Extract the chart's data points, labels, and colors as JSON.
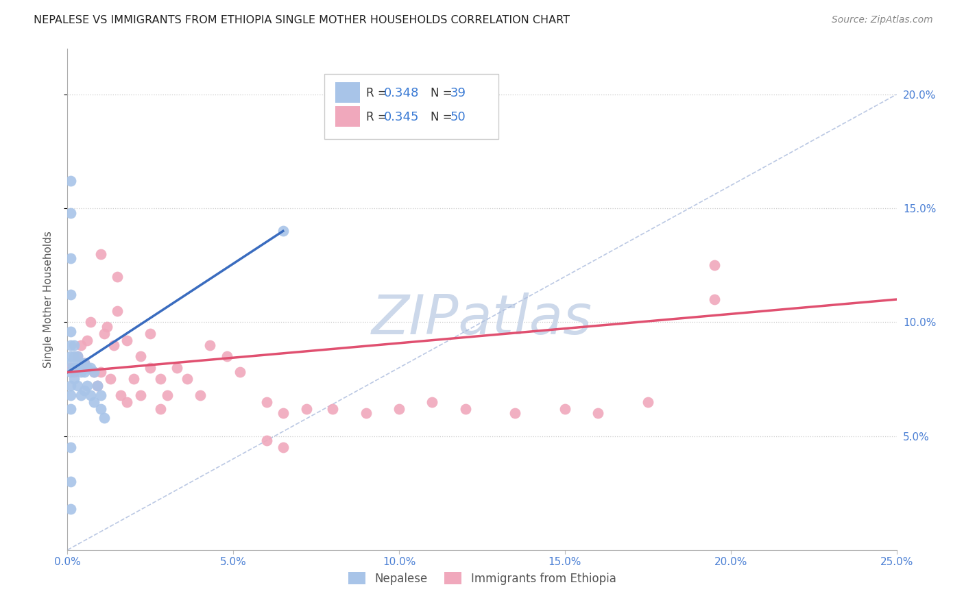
{
  "title": "NEPALESE VS IMMIGRANTS FROM ETHIOPIA SINGLE MOTHER HOUSEHOLDS CORRELATION CHART",
  "source_text": "Source: ZipAtlas.com",
  "ylabel": "Single Mother Households",
  "xlim": [
    0.0,
    0.25
  ],
  "ylim": [
    0.0,
    0.22
  ],
  "nepalese_R": 0.348,
  "nepalese_N": 39,
  "ethiopia_R": 0.345,
  "ethiopia_N": 50,
  "nepalese_color": "#a8c4e8",
  "ethiopia_color": "#f0a8bc",
  "nepalese_line_color": "#3a6cbf",
  "ethiopia_line_color": "#e05070",
  "diagonal_color": "#aabbdd",
  "watermark_color": "#ccd8ea",
  "legend_text_color": "#3a7ad4",
  "nepalese_x": [
    0.001,
    0.001,
    0.001,
    0.001,
    0.001,
    0.001,
    0.001,
    0.002,
    0.002,
    0.002,
    0.002,
    0.003,
    0.003,
    0.003,
    0.004,
    0.004,
    0.004,
    0.005,
    0.005,
    0.005,
    0.006,
    0.006,
    0.007,
    0.007,
    0.008,
    0.008,
    0.009,
    0.01,
    0.01,
    0.011,
    0.001,
    0.001,
    0.001,
    0.001,
    0.001,
    0.001,
    0.001,
    0.001,
    0.065
  ],
  "nepalese_y": [
    0.09,
    0.085,
    0.082,
    0.078,
    0.072,
    0.068,
    0.062,
    0.09,
    0.085,
    0.08,
    0.075,
    0.085,
    0.08,
    0.072,
    0.082,
    0.078,
    0.068,
    0.082,
    0.078,
    0.07,
    0.08,
    0.072,
    0.08,
    0.068,
    0.078,
    0.065,
    0.072,
    0.068,
    0.062,
    0.058,
    0.162,
    0.148,
    0.128,
    0.112,
    0.096,
    0.045,
    0.03,
    0.018,
    0.14
  ],
  "ethiopia_x": [
    0.001,
    0.002,
    0.003,
    0.004,
    0.005,
    0.006,
    0.007,
    0.008,
    0.009,
    0.01,
    0.011,
    0.012,
    0.013,
    0.014,
    0.016,
    0.018,
    0.02,
    0.022,
    0.025,
    0.028,
    0.03,
    0.033,
    0.036,
    0.04,
    0.043,
    0.048,
    0.052,
    0.06,
    0.065,
    0.072,
    0.08,
    0.09,
    0.1,
    0.11,
    0.12,
    0.135,
    0.15,
    0.16,
    0.175,
    0.195,
    0.01,
    0.015,
    0.015,
    0.018,
    0.022,
    0.025,
    0.028,
    0.06,
    0.065,
    0.195
  ],
  "ethiopia_y": [
    0.08,
    0.078,
    0.085,
    0.09,
    0.082,
    0.092,
    0.1,
    0.078,
    0.072,
    0.078,
    0.095,
    0.098,
    0.075,
    0.09,
    0.068,
    0.065,
    0.075,
    0.068,
    0.095,
    0.062,
    0.068,
    0.08,
    0.075,
    0.068,
    0.09,
    0.085,
    0.078,
    0.065,
    0.06,
    0.062,
    0.062,
    0.06,
    0.062,
    0.065,
    0.062,
    0.06,
    0.062,
    0.06,
    0.065,
    0.125,
    0.13,
    0.105,
    0.12,
    0.092,
    0.085,
    0.08,
    0.075,
    0.048,
    0.045,
    0.11
  ],
  "nep_line_x0": 0.0,
  "nep_line_y0": 0.078,
  "nep_line_x1": 0.065,
  "nep_line_y1": 0.14,
  "eth_line_x0": 0.0,
  "eth_line_y0": 0.078,
  "eth_line_x1": 0.25,
  "eth_line_y1": 0.11
}
